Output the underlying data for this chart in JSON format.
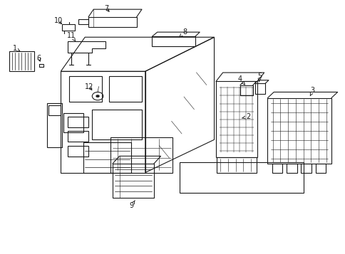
{
  "bg_color": "#ffffff",
  "line_color": "#1a1a1a",
  "lw": 0.8,
  "labels": {
    "1": [
      0.045,
      0.785,
      0.062,
      0.758
    ],
    "2": [
      0.72,
      0.538,
      0.698,
      0.535
    ],
    "3": [
      0.905,
      0.53,
      0.888,
      0.528
    ],
    "4": [
      0.718,
      0.635,
      0.726,
      0.62
    ],
    "5": [
      0.758,
      0.648,
      0.753,
      0.628
    ],
    "6": [
      0.123,
      0.75,
      0.124,
      0.73
    ],
    "7": [
      0.31,
      0.928,
      0.33,
      0.908
    ],
    "8": [
      0.537,
      0.84,
      0.52,
      0.815
    ],
    "9": [
      0.385,
      0.178,
      0.395,
      0.198
    ],
    "10": [
      0.175,
      0.892,
      0.192,
      0.878
    ],
    "11": [
      0.21,
      0.838,
      0.218,
      0.805
    ],
    "12": [
      0.27,
      0.638,
      0.28,
      0.62
    ]
  }
}
